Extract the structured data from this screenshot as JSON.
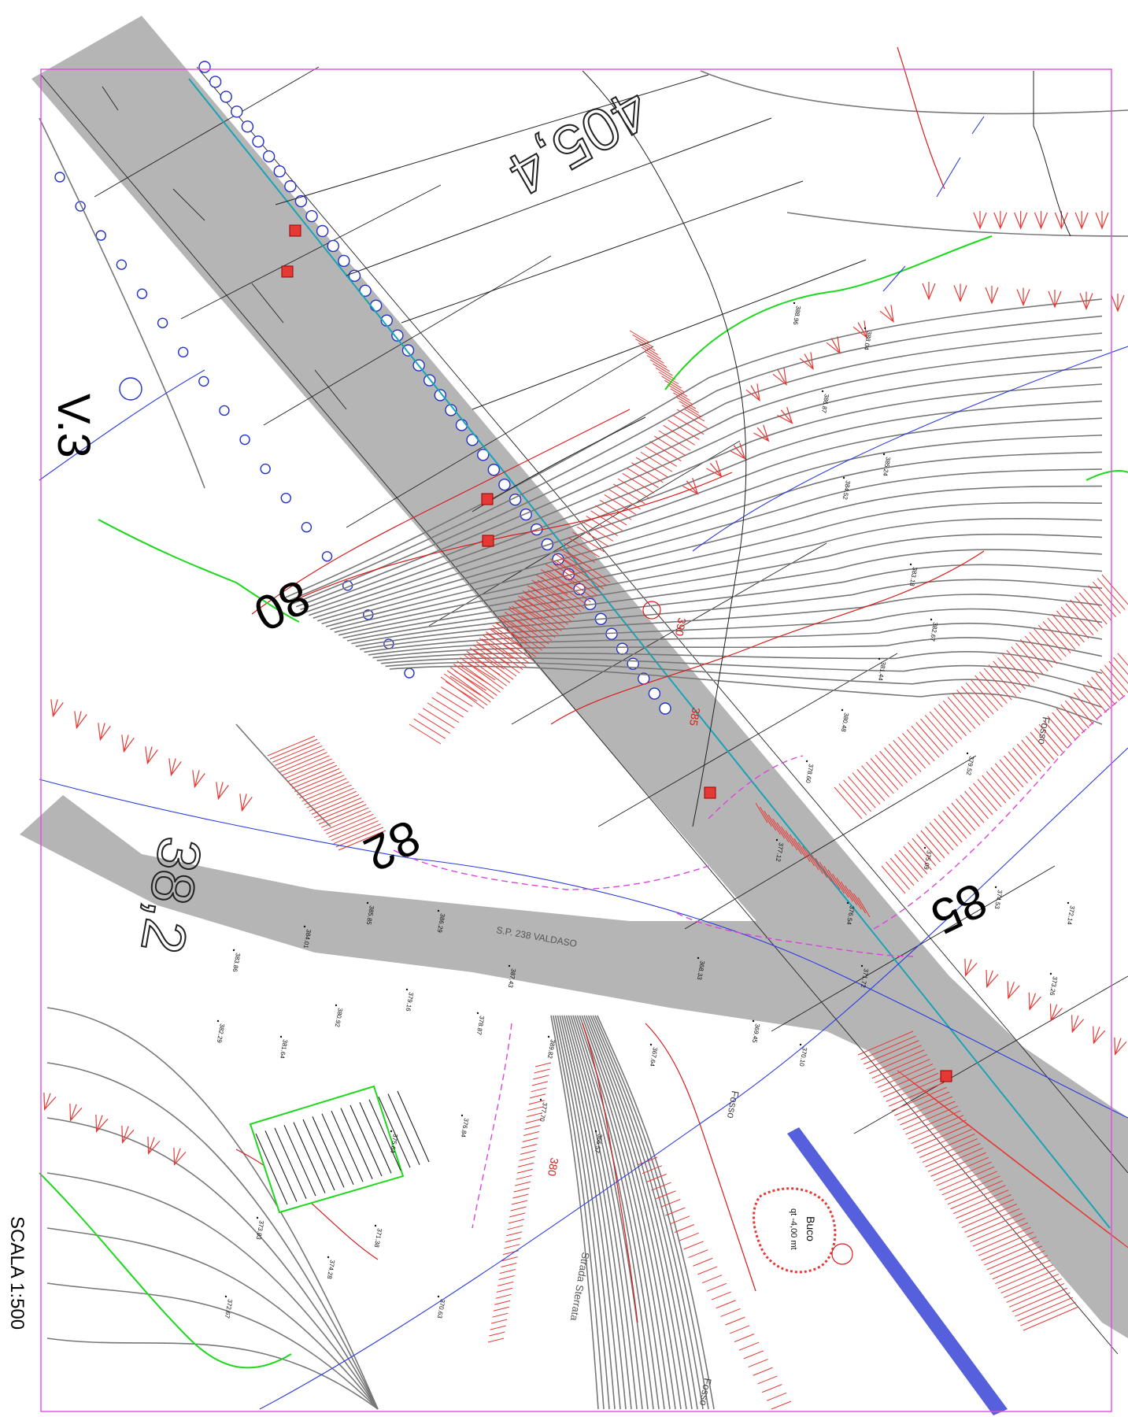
{
  "labels": {
    "scale": "SCALA 1:500",
    "sheet_id": "V.3",
    "section_80": "80",
    "section_82": "82",
    "section_85": "85",
    "parcel_top": "405,4",
    "parcel_left": "38,2",
    "road_name": "S.P. 238 VALDASO",
    "ditch_1": "Fosso",
    "ditch_2": "Fosso",
    "ditch_3": "Fosso",
    "dirt_road": "Strada Sterrata",
    "hole_title": "Buco",
    "hole_depth": "qt -4,00 mt",
    "contour_385": "385",
    "contour_390": "390",
    "contour_380": "380"
  },
  "colors": {
    "frame": "#e04ce0",
    "road": "#b5b5b5",
    "contour_minor": "#777777",
    "contour_index": "#d81b1b",
    "slope_hatch": "#e53935",
    "utility_poles": "#2230c8",
    "vegetation": "#1ed81e",
    "pipeline": "#2a3be0"
  },
  "spot_heights": [
    "388.96",
    "388.04",
    "386.87",
    "385.24",
    "384.52",
    "383.18",
    "382.67",
    "381.44",
    "380.48",
    "379.52",
    "378.60",
    "377.12",
    "376.54",
    "375.09",
    "374.53",
    "373.26",
    "372.14",
    "371.72",
    "370.10",
    "369.45",
    "368.33",
    "367.64",
    "366.57",
    "389.82",
    "387.43",
    "386.29",
    "385.85",
    "384.01",
    "383.86",
    "382.29",
    "381.64",
    "380.92",
    "379.16",
    "378.87",
    "377.70",
    "376.84",
    "375.64",
    "374.28",
    "373.83",
    "372.67",
    "371.38",
    "370.63"
  ]
}
